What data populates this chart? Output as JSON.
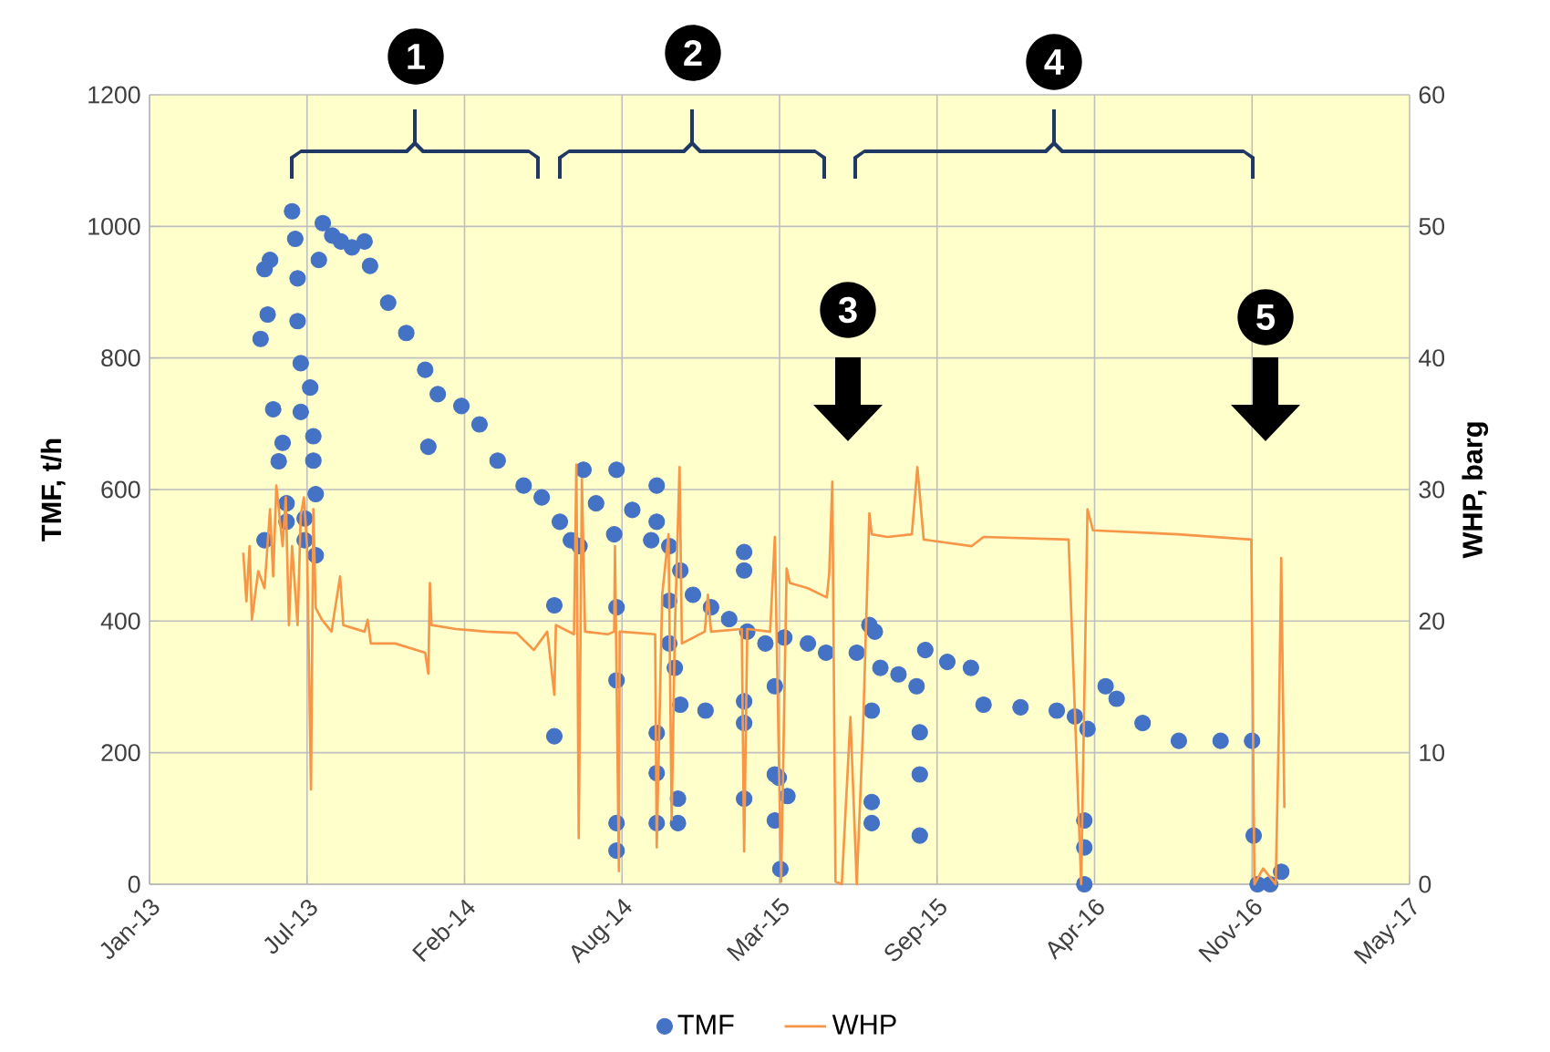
{
  "chart_data": {
    "type": "scatter",
    "xlim": [
      "2013-01-01",
      "2017-05-20"
    ],
    "xticks": [
      {
        "value": "2013-01-01",
        "label": "Jan-13"
      },
      {
        "value": "2013-07-20",
        "label": "Jul-13"
      },
      {
        "value": "2014-02-05",
        "label": "Feb-14"
      },
      {
        "value": "2014-08-24",
        "label": "Aug-14"
      },
      {
        "value": "2015-03-12",
        "label": "Mar-15"
      },
      {
        "value": "2015-09-28",
        "label": "Sep-15"
      },
      {
        "value": "2016-04-15",
        "label": "Apr-16"
      },
      {
        "value": "2016-11-01",
        "label": "Nov-16"
      },
      {
        "value": "2017-05-20",
        "label": "May-17"
      }
    ],
    "ylim": [
      0,
      1200
    ],
    "yticks": [
      0,
      200,
      400,
      600,
      800,
      1000,
      1200
    ],
    "y2lim": [
      0,
      60
    ],
    "y2ticks": [
      0,
      10,
      20,
      30,
      40,
      50,
      60
    ],
    "ylabel": "TMF, t/h",
    "y2label": "WHP, barg",
    "grid": true,
    "legend": "bottom",
    "annotations": [
      "1",
      "2",
      "3",
      "4",
      "5"
    ],
    "series": [
      {
        "name": "TMF",
        "marker": "circle",
        "color": "#4472c4",
        "x": [
          "2013-05-22",
          "2013-05-27",
          "2013-05-27",
          "2013-05-31",
          "2013-06-03",
          "2013-06-07",
          "2013-06-14",
          "2013-06-19",
          "2013-06-24",
          "2013-06-24",
          "2013-07-01",
          "2013-07-05",
          "2013-07-08",
          "2013-07-08",
          "2013-07-12",
          "2013-07-12",
          "2013-07-17",
          "2013-07-17",
          "2013-07-24",
          "2013-07-28",
          "2013-07-28",
          "2013-07-31",
          "2013-07-31",
          "2013-08-04",
          "2013-08-09",
          "2013-08-21",
          "2013-09-01",
          "2013-09-15",
          "2013-10-01",
          "2013-10-08",
          "2013-10-31",
          "2013-11-23",
          "2013-12-17",
          "2013-12-21",
          "2014-01-02",
          "2014-02-01",
          "2014-02-24",
          "2014-03-19",
          "2014-04-21",
          "2014-05-14",
          "2014-05-30",
          "2014-05-30",
          "2014-06-06",
          "2014-06-20",
          "2014-07-01",
          "2014-07-06",
          "2014-07-22",
          "2014-08-14",
          "2014-08-17",
          "2014-08-17",
          "2014-08-17",
          "2014-08-17",
          "2014-08-17",
          "2014-09-06",
          "2014-09-30",
          "2014-10-07",
          "2014-10-07",
          "2014-10-07",
          "2014-10-07",
          "2014-10-07",
          "2014-10-23",
          "2014-10-23",
          "2014-10-23",
          "2014-10-30",
          "2014-11-03",
          "2014-11-03",
          "2014-11-06",
          "2014-11-06",
          "2014-11-22",
          "2014-12-08",
          "2014-12-15",
          "2015-01-07",
          "2015-01-26",
          "2015-01-26",
          "2015-01-26",
          "2015-01-26",
          "2015-01-26",
          "2015-01-30",
          "2015-02-22",
          "2015-03-06",
          "2015-03-06",
          "2015-03-06",
          "2015-03-11",
          "2015-03-13",
          "2015-03-18",
          "2015-03-22",
          "2015-04-17",
          "2015-05-10",
          "2015-06-18",
          "2015-07-04",
          "2015-07-07",
          "2015-07-07",
          "2015-07-07",
          "2015-07-11",
          "2015-07-18",
          "2015-08-10",
          "2015-09-02",
          "2015-09-06",
          "2015-09-06",
          "2015-09-06",
          "2015-09-13",
          "2015-10-11",
          "2015-11-10",
          "2015-11-26",
          "2016-01-12",
          "2016-02-27",
          "2016-03-21",
          "2016-04-02",
          "2016-04-02",
          "2016-04-02",
          "2016-04-06",
          "2016-04-29",
          "2016-05-13",
          "2016-06-15",
          "2016-07-31",
          "2016-09-22",
          "2016-11-01",
          "2016-11-03",
          "2016-11-08",
          "2016-11-24",
          "2016-12-08"
        ],
        "values": [
          829,
          523,
          935,
          866,
          949,
          722,
          643,
          671,
          579,
          551,
          1023,
          981,
          921,
          856,
          792,
          718,
          523,
          556,
          755,
          681,
          644,
          593,
          500,
          949,
          1005,
          986,
          977,
          968,
          977,
          940,
          884,
          838,
          782,
          665,
          745,
          727,
          699,
          644,
          606,
          588,
          424,
          225,
          551,
          523,
          514,
          630,
          579,
          532,
          630,
          421,
          310,
          93,
          51,
          569,
          523,
          606,
          551,
          230,
          169,
          93,
          514,
          431,
          366,
          329,
          130,
          93,
          477,
          273,
          440,
          264,
          421,
          403,
          505,
          477,
          278,
          245,
          130,
          384,
          366,
          301,
          167,
          97,
          162,
          23,
          375,
          134,
          366,
          352,
          352,
          394,
          264,
          125,
          93,
          384,
          329,
          319,
          301,
          231,
          167,
          74,
          356,
          338,
          329,
          273,
          269,
          264,
          255,
          97,
          56,
          0,
          236,
          301,
          282,
          245,
          218,
          218,
          218,
          74,
          0,
          0,
          19
        ]
      },
      {
        "name": "WHP",
        "type": "line",
        "axis": "y2",
        "marker": "none",
        "line_style": "solid",
        "color": "#f79646",
        "x": [
          "2013-04-30",
          "2013-05-04",
          "2013-05-08",
          "2013-05-11",
          "2013-05-19",
          "2013-05-27",
          "2013-06-03",
          "2013-06-07",
          "2013-06-11",
          "2013-06-19",
          "2013-06-23",
          "2013-06-27",
          "2013-07-01",
          "2013-07-08",
          "2013-07-12",
          "2013-07-16",
          "2013-07-20",
          "2013-07-25",
          "2013-07-28",
          "2013-07-31",
          "2013-08-08",
          "2013-08-20",
          "2013-08-31",
          "2013-09-04",
          "2013-10-01",
          "2013-10-05",
          "2013-10-09",
          "2013-11-09",
          "2013-12-17",
          "2013-12-21",
          "2013-12-23",
          "2013-12-25",
          "2014-01-25",
          "2014-03-05",
          "2014-04-12",
          "2014-05-04",
          "2014-05-21",
          "2014-05-30",
          "2014-06-01",
          "2014-06-24",
          "2014-06-27",
          "2014-06-30",
          "2014-07-04",
          "2014-07-08",
          "2014-08-06",
          "2014-08-14",
          "2014-08-15",
          "2014-08-20",
          "2014-08-21",
          "2014-10-05",
          "2014-10-07",
          "2014-10-14",
          "2014-10-22",
          "2014-10-26",
          "2014-10-30",
          "2014-11-05",
          "2014-11-08",
          "2014-12-07",
          "2014-12-11",
          "2014-12-15",
          "2015-01-23",
          "2015-01-26",
          "2015-01-30",
          "2015-02-28",
          "2015-03-06",
          "2015-03-14",
          "2015-03-21",
          "2015-03-25",
          "2015-04-17",
          "2015-05-11",
          "2015-05-14",
          "2015-05-18",
          "2015-05-22",
          "2015-05-30",
          "2015-06-10",
          "2015-06-18",
          "2015-06-26",
          "2015-07-04",
          "2015-07-07",
          "2015-07-27",
          "2015-08-27",
          "2015-09-03",
          "2015-09-11",
          "2015-11-11",
          "2015-11-26",
          "2016-03-13",
          "2016-03-29",
          "2016-04-06",
          "2016-04-13",
          "2016-07-30",
          "2016-10-31",
          "2016-11-04",
          "2016-11-15",
          "2016-12-01",
          "2016-12-05",
          "2016-12-08",
          "2016-12-12"
        ],
        "values": [
          25.2,
          21.5,
          25.7,
          20.1,
          23.8,
          22.5,
          28.5,
          23.4,
          30.3,
          25.7,
          29.4,
          19.7,
          25.7,
          19.7,
          28,
          29.4,
          25.7,
          7.2,
          28.5,
          21,
          20.1,
          19.2,
          23.4,
          19.7,
          19.2,
          20.1,
          18.3,
          18.3,
          17.6,
          16,
          22.9,
          19.7,
          19.4,
          19.2,
          19.1,
          17.8,
          19.2,
          14.4,
          19.7,
          19,
          31.9,
          3.5,
          30.8,
          19.2,
          19,
          19.2,
          25.7,
          1,
          19.2,
          19,
          2.8,
          22,
          26.6,
          4.9,
          19.2,
          31.7,
          18.3,
          19.2,
          22,
          19.2,
          19.4,
          2.5,
          19.4,
          19.2,
          26.4,
          0.2,
          24,
          22.9,
          22.5,
          21.8,
          23.6,
          30.6,
          0.2,
          0,
          12.7,
          0,
          11.8,
          28.2,
          26.6,
          26.4,
          26.6,
          31.7,
          26.2,
          25.7,
          26.4,
          26.2,
          0,
          28.5,
          26.9,
          26.6,
          26.2,
          0,
          1.2,
          0,
          11.8,
          24.8,
          5.8
        ]
      }
    ]
  }
}
